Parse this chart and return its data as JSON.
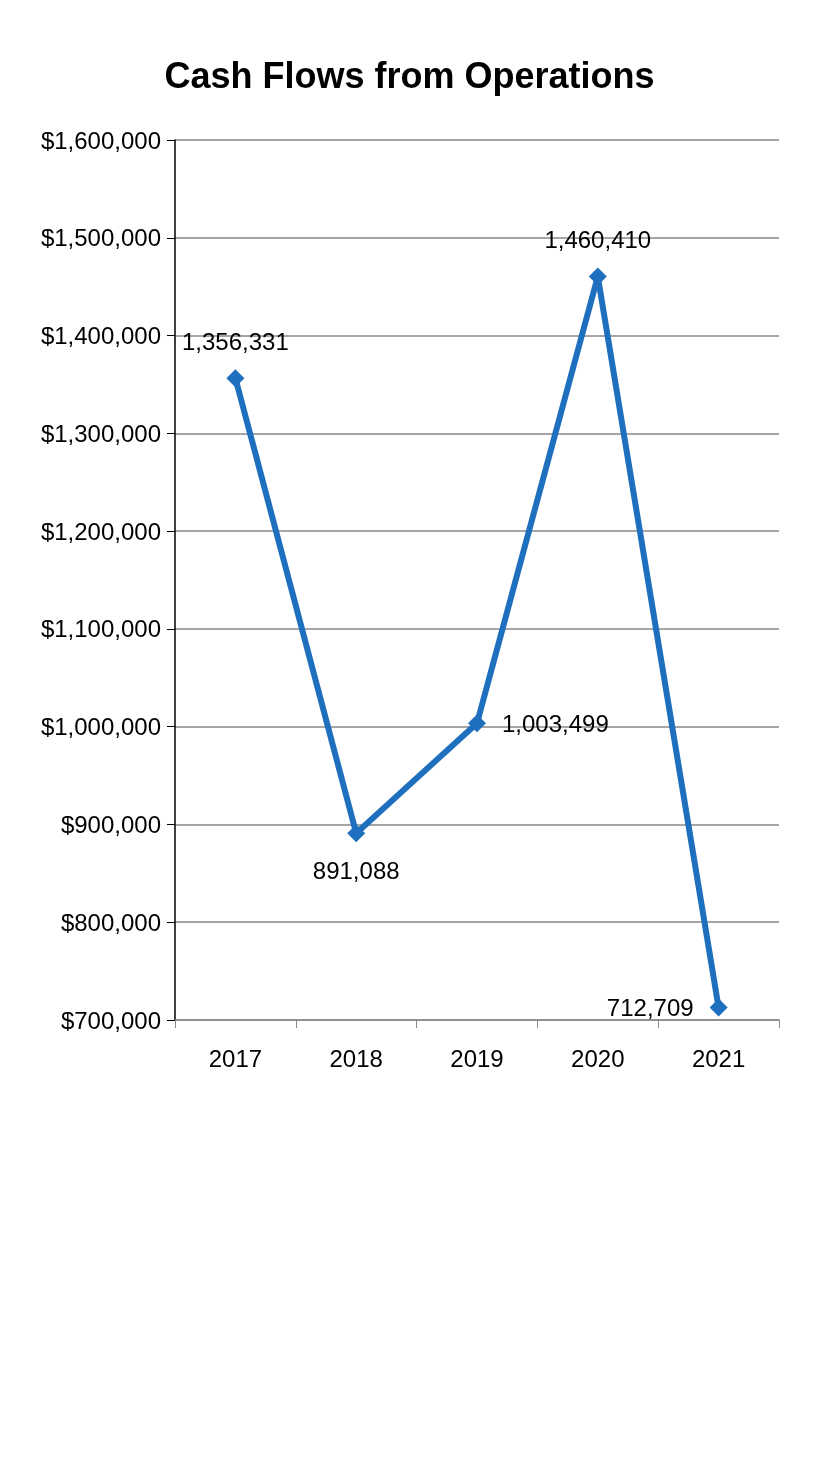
{
  "chart_data": {
    "type": "line",
    "title": "Cash Flows from Operations",
    "categories": [
      "2017",
      "2018",
      "2019",
      "2020",
      "2021"
    ],
    "series": [
      {
        "color": "#1f6fbf",
        "values": [
          1356331,
          891088,
          1003499,
          1460410,
          712709
        ]
      }
    ],
    "ylim": [
      700000,
      1600000
    ],
    "yticks": [
      {
        "value": 700000,
        "label": "$700,000"
      },
      {
        "value": 800000,
        "label": "$800,000"
      },
      {
        "value": 900000,
        "label": "$900,000"
      },
      {
        "value": 1000000,
        "label": "$1,000,000"
      },
      {
        "value": 1100000,
        "label": "$1,100,000"
      },
      {
        "value": 1200000,
        "label": "$1,200,000"
      },
      {
        "value": 1300000,
        "label": "$1,300,000"
      },
      {
        "value": 1400000,
        "label": "$1,400,000"
      },
      {
        "value": 1500000,
        "label": "$1,500,000"
      },
      {
        "value": 1600000,
        "label": "$1,600,000"
      }
    ],
    "value_labels": [
      "1,356,331",
      "891,088",
      "1,003,499",
      "1,460,410",
      "712,709"
    ],
    "grid": "y",
    "marker": "diamond",
    "line_style": "solid"
  }
}
